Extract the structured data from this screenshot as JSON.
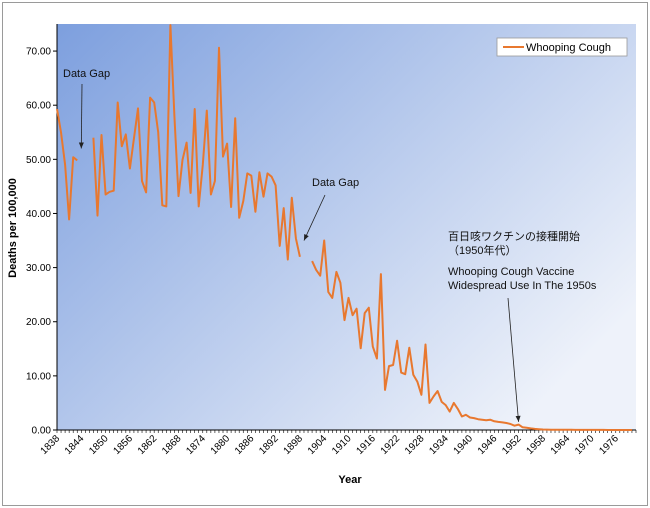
{
  "chart_data": {
    "type": "line",
    "xlabel": "Year",
    "ylabel": "Deaths per 100,000",
    "ylim": [
      0,
      75
    ],
    "xlim": [
      1838,
      1981
    ],
    "y_ticks": [
      "0.00",
      "10.00",
      "20.00",
      "30.00",
      "40.00",
      "50.00",
      "60.00",
      "70.00"
    ],
    "x_ticks": [
      "1838",
      "1844",
      "1850",
      "1856",
      "1862",
      "1868",
      "1874",
      "1880",
      "1886",
      "1892",
      "1898",
      "1904",
      "1910",
      "1916",
      "1922",
      "1928",
      "1934",
      "1940",
      "1946",
      "1952",
      "1958",
      "1964",
      "1970",
      "1976"
    ],
    "legend": {
      "position": "top-right"
    },
    "series": [
      {
        "name": "Whooping Cough",
        "color": "#e8782f",
        "segments": [
          [
            [
              1838,
              59.3
            ],
            [
              1839,
              55
            ],
            [
              1840,
              49
            ],
            [
              1841,
              38.9
            ],
            [
              1842,
              50.4
            ],
            [
              1843,
              49.8
            ]
          ],
          [
            [
              1847,
              54
            ],
            [
              1848,
              39.6
            ],
            [
              1849,
              54.5
            ],
            [
              1850,
              43.5
            ],
            [
              1851,
              44
            ],
            [
              1852,
              44.2
            ],
            [
              1853,
              60.5
            ],
            [
              1854,
              52.4
            ],
            [
              1855,
              54.6
            ],
            [
              1856,
              48.3
            ],
            [
              1857,
              53.8
            ],
            [
              1858,
              59.4
            ],
            [
              1859,
              46
            ],
            [
              1860,
              43.9
            ],
            [
              1861,
              61.4
            ],
            [
              1862,
              60.5
            ],
            [
              1863,
              55
            ],
            [
              1864,
              41.5
            ],
            [
              1865,
              41.3
            ],
            [
              1866,
              74.8
            ],
            [
              1867,
              58
            ],
            [
              1868,
              43.2
            ],
            [
              1869,
              49.9
            ],
            [
              1870,
              53.1
            ],
            [
              1871,
              43.8
            ],
            [
              1872,
              59.3
            ],
            [
              1873,
              41.3
            ],
            [
              1874,
              49
            ],
            [
              1875,
              59
            ],
            [
              1876,
              43.5
            ],
            [
              1877,
              46
            ],
            [
              1878,
              70.6
            ],
            [
              1879,
              50.5
            ],
            [
              1880,
              52.9
            ],
            [
              1881,
              41.2
            ],
            [
              1882,
              57.6
            ],
            [
              1883,
              39.2
            ],
            [
              1884,
              42.3
            ],
            [
              1885,
              47.4
            ],
            [
              1886,
              47
            ],
            [
              1887,
              40.3
            ],
            [
              1888,
              47.6
            ],
            [
              1889,
              43.1
            ],
            [
              1890,
              47.4
            ],
            [
              1891,
              46.8
            ],
            [
              1892,
              45.2
            ],
            [
              1893,
              34
            ],
            [
              1894,
              41
            ],
            [
              1895,
              31.5
            ],
            [
              1896,
              42.9
            ],
            [
              1897,
              35.4
            ],
            [
              1898,
              32
            ]
          ],
          [
            [
              1901,
              31.2
            ],
            [
              1902,
              29.6
            ],
            [
              1903,
              28.5
            ],
            [
              1904,
              35
            ],
            [
              1905,
              25.5
            ],
            [
              1906,
              24.4
            ],
            [
              1907,
              29.2
            ],
            [
              1908,
              27.2
            ],
            [
              1909,
              20.3
            ],
            [
              1910,
              24.4
            ],
            [
              1911,
              21.2
            ],
            [
              1912,
              22.4
            ],
            [
              1913,
              15.1
            ],
            [
              1914,
              21.6
            ],
            [
              1915,
              22.6
            ],
            [
              1916,
              15.4
            ],
            [
              1917,
              13.2
            ],
            [
              1918,
              28.8
            ],
            [
              1919,
              7.4
            ],
            [
              1920,
              11.8
            ],
            [
              1921,
              12
            ],
            [
              1922,
              16.5
            ],
            [
              1923,
              10.6
            ],
            [
              1924,
              10.3
            ],
            [
              1925,
              15.2
            ],
            [
              1926,
              10.2
            ],
            [
              1927,
              8.9
            ],
            [
              1928,
              6.5
            ],
            [
              1929,
              15.8
            ],
            [
              1930,
              5
            ],
            [
              1931,
              6.2
            ],
            [
              1932,
              7.2
            ],
            [
              1933,
              5.2
            ],
            [
              1934,
              4.6
            ],
            [
              1935,
              3.4
            ],
            [
              1936,
              5
            ],
            [
              1937,
              3.9
            ],
            [
              1938,
              2.5
            ],
            [
              1939,
              2.8
            ],
            [
              1940,
              2.3
            ],
            [
              1941,
              2.2
            ],
            [
              1942,
              2
            ],
            [
              1943,
              1.9
            ],
            [
              1944,
              1.8
            ],
            [
              1945,
              1.9
            ],
            [
              1946,
              1.6
            ],
            [
              1947,
              1.5
            ],
            [
              1948,
              1.4
            ],
            [
              1949,
              1.3
            ],
            [
              1950,
              1.1
            ],
            [
              1951,
              0.8
            ],
            [
              1952,
              1
            ],
            [
              1953,
              0.5
            ],
            [
              1954,
              0.4
            ],
            [
              1955,
              0.3
            ],
            [
              1956,
              0.2
            ],
            [
              1957,
              0.15
            ],
            [
              1958,
              0.1
            ],
            [
              1959,
              0.08
            ],
            [
              1960,
              0.06
            ],
            [
              1961,
              0.05
            ],
            [
              1962,
              0.05
            ],
            [
              1963,
              0.04
            ],
            [
              1964,
              0.03
            ],
            [
              1965,
              0.03
            ],
            [
              1966,
              0.02
            ],
            [
              1967,
              0.02
            ],
            [
              1968,
              0.02
            ],
            [
              1969,
              0.02
            ],
            [
              1970,
              0.01
            ],
            [
              1971,
              0.01
            ],
            [
              1972,
              0.01
            ],
            [
              1973,
              0.01
            ],
            [
              1974,
              0
            ],
            [
              1975,
              0
            ],
            [
              1976,
              0
            ],
            [
              1977,
              0
            ],
            [
              1978,
              0
            ],
            [
              1979,
              0
            ],
            [
              1980,
              0
            ]
          ]
        ]
      }
    ],
    "annotations": [
      {
        "id": "gap1",
        "lines": [
          "Data Gap"
        ],
        "arrow_to": [
          1844,
          52
        ]
      },
      {
        "id": "gap2",
        "lines": [
          "Data Gap"
        ],
        "arrow_to": [
          1899,
          35
        ]
      },
      {
        "id": "vaccine-jp",
        "lines": [
          "百日咳ワクチンの接種開始",
          "（1950年代）"
        ]
      },
      {
        "id": "vaccine-en",
        "lines": [
          "Whooping Cough Vaccine",
          "Widespread Use In The 1950s"
        ],
        "arrow_to": [
          1952,
          1.5
        ]
      }
    ],
    "colors": {
      "plot_bg_start": "#7d9fde",
      "plot_bg_end": "#eef2fa",
      "line": "#e8782f"
    }
  }
}
